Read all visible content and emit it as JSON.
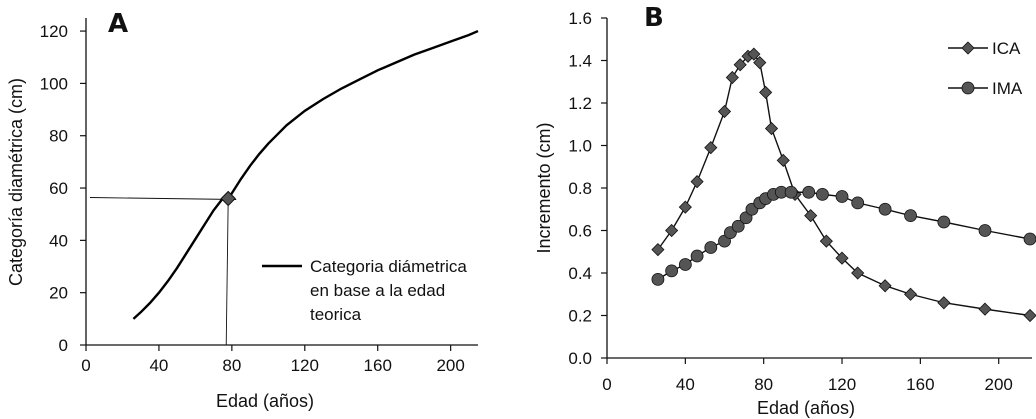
{
  "chart_data": [
    {
      "panel": "A",
      "type": "line",
      "xlabel": "Edad (años)",
      "ylabel": "Categoría diamétrica (cm)",
      "xlim": [
        0,
        215
      ],
      "ylim": [
        0,
        125
      ],
      "xticks": [
        0,
        40,
        80,
        120,
        160,
        200
      ],
      "yticks": [
        0,
        20,
        40,
        60,
        80,
        100,
        120
      ],
      "xtick_labels": [
        "0",
        "40",
        "80",
        "120",
        "160",
        "200"
      ],
      "ytick_labels": [
        "0",
        "20",
        "40",
        "60",
        "80",
        "100",
        "120"
      ],
      "legend_position": "right",
      "grid": false,
      "series": [
        {
          "name": "Categoria diámetrica en base a la edad teorica",
          "legend_lines": [
            "Categoria diámetrica",
            "en base a la edad",
            "teorica"
          ],
          "x": [
            26,
            30,
            35,
            40,
            45,
            50,
            55,
            60,
            65,
            70,
            75,
            78,
            80,
            85,
            90,
            95,
            100,
            105,
            110,
            120,
            130,
            140,
            150,
            160,
            170,
            180,
            190,
            200,
            210,
            215
          ],
          "y": [
            10,
            12.5,
            16,
            20,
            24.5,
            29.5,
            35,
            40.5,
            46,
            51.5,
            56,
            56,
            58,
            63.5,
            68.5,
            73,
            77,
            80.5,
            84,
            89.5,
            94,
            98,
            101.5,
            105,
            108,
            111,
            113.5,
            116,
            118.5,
            120
          ]
        }
      ],
      "annotation": {
        "marker": "diamond",
        "x": 78,
        "y": 56
      }
    },
    {
      "panel": "B",
      "type": "line",
      "xlabel": "Edad (años)",
      "ylabel": "Incremento (cm)",
      "xlim": [
        0,
        217
      ],
      "ylim": [
        0,
        1.6
      ],
      "xticks": [
        0,
        40,
        80,
        120,
        160,
        200
      ],
      "yticks": [
        0,
        0.2,
        0.4,
        0.6,
        0.8,
        1.0,
        1.2,
        1.4,
        1.6
      ],
      "xtick_labels": [
        "0",
        "40",
        "80",
        "120",
        "160",
        "200"
      ],
      "ytick_labels": [
        "0.0",
        "0.2",
        "0.4",
        "0.6",
        "0.8",
        "1.0",
        "1.2",
        "1.4",
        "1.6"
      ],
      "legend_position": "top-right",
      "grid": false,
      "series": [
        {
          "name": "ICA",
          "marker": "diamond",
          "x": [
            26,
            33,
            40,
            46,
            53,
            60,
            64,
            68,
            72,
            75,
            78,
            81,
            84,
            90,
            96,
            104,
            112,
            120,
            128,
            142,
            155,
            172,
            193,
            216
          ],
          "y": [
            0.51,
            0.6,
            0.71,
            0.83,
            0.99,
            1.16,
            1.32,
            1.38,
            1.42,
            1.43,
            1.39,
            1.25,
            1.08,
            0.93,
            0.77,
            0.67,
            0.55,
            0.47,
            0.4,
            0.34,
            0.3,
            0.26,
            0.23,
            0.2
          ]
        },
        {
          "name": "IMA",
          "marker": "circle",
          "x": [
            26,
            33,
            40,
            46,
            53,
            60,
            63,
            67,
            71,
            74,
            78,
            81,
            85,
            89,
            94,
            103,
            110,
            120,
            128,
            142,
            155,
            172,
            193,
            216
          ],
          "y": [
            0.37,
            0.41,
            0.44,
            0.48,
            0.52,
            0.55,
            0.59,
            0.62,
            0.66,
            0.7,
            0.73,
            0.75,
            0.77,
            0.78,
            0.78,
            0.78,
            0.77,
            0.76,
            0.73,
            0.7,
            0.67,
            0.64,
            0.6,
            0.56
          ]
        }
      ]
    }
  ]
}
